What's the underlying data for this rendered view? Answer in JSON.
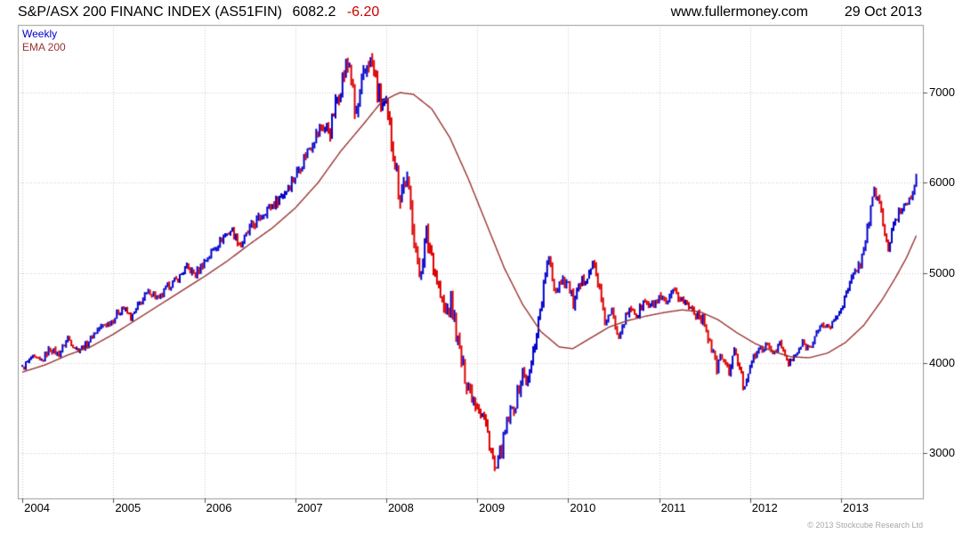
{
  "header": {
    "title": "S&P/ASX 200 FINANC INDEX (AS51FIN)",
    "last_value": "6082.2",
    "change": "-6.20",
    "website": "www.fullermoney.com",
    "date": "29 Oct 2013"
  },
  "legend": {
    "series1": "Weekly",
    "series2": "EMA 200"
  },
  "footer": {
    "copyright": "© 2013 Stockcube Research Ltd"
  },
  "axes": {
    "y_ticks": [
      7000,
      6000,
      5000,
      4000,
      3000
    ],
    "x_ticks": [
      2004,
      2005,
      2006,
      2007,
      2008,
      2009,
      2010,
      2011,
      2012,
      2013
    ]
  },
  "chart_data": {
    "type": "bar",
    "subtype": "weekly-high-low-bars-with-ema",
    "title": "S&P/ASX 200 FINANC INDEX (AS51FIN)",
    "last_close": 6082.2,
    "change": -6.2,
    "x_min": 2003.95,
    "x_max": 2013.9,
    "y_min": 2500,
    "y_max": 7750,
    "t_start": 2004.0,
    "t_end": 2013.83,
    "grid": true,
    "legend_position": "top-left",
    "colors": {
      "up": "#0000cc",
      "down": "#dd0000",
      "ema": "#993333",
      "grid": "#c8c8c8",
      "border": "#999999",
      "tick": "#555555",
      "change_negative": "#cc0000"
    },
    "price_anchors": [
      [
        2004.0,
        3940
      ],
      [
        2004.1,
        4060
      ],
      [
        2004.2,
        4010
      ],
      [
        2004.3,
        4160
      ],
      [
        2004.4,
        4100
      ],
      [
        2004.5,
        4280
      ],
      [
        2004.6,
        4150
      ],
      [
        2004.7,
        4200
      ],
      [
        2004.8,
        4350
      ],
      [
        2004.9,
        4420
      ],
      [
        2005.0,
        4480
      ],
      [
        2005.1,
        4620
      ],
      [
        2005.2,
        4500
      ],
      [
        2005.3,
        4680
      ],
      [
        2005.4,
        4800
      ],
      [
        2005.5,
        4700
      ],
      [
        2005.6,
        4850
      ],
      [
        2005.7,
        4920
      ],
      [
        2005.8,
        5060
      ],
      [
        2005.9,
        4980
      ],
      [
        2006.0,
        5120
      ],
      [
        2006.1,
        5260
      ],
      [
        2006.2,
        5390
      ],
      [
        2006.3,
        5480
      ],
      [
        2006.4,
        5300
      ],
      [
        2006.5,
        5480
      ],
      [
        2006.6,
        5600
      ],
      [
        2006.7,
        5720
      ],
      [
        2006.8,
        5800
      ],
      [
        2006.9,
        5920
      ],
      [
        2007.0,
        6080
      ],
      [
        2007.1,
        6280
      ],
      [
        2007.2,
        6480
      ],
      [
        2007.3,
        6650
      ],
      [
        2007.38,
        6560
      ],
      [
        2007.45,
        6900
      ],
      [
        2007.55,
        7250
      ],
      [
        2007.6,
        7330
      ],
      [
        2007.66,
        6700
      ],
      [
        2007.72,
        7000
      ],
      [
        2007.8,
        7380
      ],
      [
        2007.86,
        7250
      ],
      [
        2007.93,
        6900
      ],
      [
        2008.0,
        6800
      ],
      [
        2008.08,
        6350
      ],
      [
        2008.15,
        5850
      ],
      [
        2008.22,
        6050
      ],
      [
        2008.3,
        5500
      ],
      [
        2008.36,
        4950
      ],
      [
        2008.44,
        5400
      ],
      [
        2008.5,
        5200
      ],
      [
        2008.58,
        4800
      ],
      [
        2008.65,
        4550
      ],
      [
        2008.72,
        4650
      ],
      [
        2008.8,
        4150
      ],
      [
        2008.88,
        3800
      ],
      [
        2008.95,
        3650
      ],
      [
        2009.0,
        3550
      ],
      [
        2009.08,
        3380
      ],
      [
        2009.15,
        3050
      ],
      [
        2009.2,
        2780
      ],
      [
        2009.28,
        3100
      ],
      [
        2009.35,
        3420
      ],
      [
        2009.42,
        3550
      ],
      [
        2009.5,
        3900
      ],
      [
        2009.56,
        3780
      ],
      [
        2009.62,
        4150
      ],
      [
        2009.7,
        4650
      ],
      [
        2009.76,
        5050
      ],
      [
        2009.8,
        5120
      ],
      [
        2009.86,
        4800
      ],
      [
        2009.93,
        4950
      ],
      [
        2010.0,
        4880
      ],
      [
        2010.06,
        4650
      ],
      [
        2010.12,
        4820
      ],
      [
        2010.2,
        4980
      ],
      [
        2010.28,
        5100
      ],
      [
        2010.34,
        4850
      ],
      [
        2010.4,
        4450
      ],
      [
        2010.48,
        4550
      ],
      [
        2010.55,
        4320
      ],
      [
        2010.62,
        4480
      ],
      [
        2010.7,
        4620
      ],
      [
        2010.76,
        4520
      ],
      [
        2010.83,
        4680
      ],
      [
        2010.9,
        4620
      ],
      [
        2011.0,
        4700
      ],
      [
        2011.08,
        4640
      ],
      [
        2011.16,
        4780
      ],
      [
        2011.25,
        4720
      ],
      [
        2011.33,
        4620
      ],
      [
        2011.42,
        4550
      ],
      [
        2011.5,
        4450
      ],
      [
        2011.58,
        4150
      ],
      [
        2011.63,
        3950
      ],
      [
        2011.7,
        4080
      ],
      [
        2011.76,
        3880
      ],
      [
        2011.82,
        4120
      ],
      [
        2011.88,
        3980
      ],
      [
        2011.93,
        3720
      ],
      [
        2012.0,
        3980
      ],
      [
        2012.08,
        4120
      ],
      [
        2012.16,
        4200
      ],
      [
        2012.25,
        4120
      ],
      [
        2012.33,
        4220
      ],
      [
        2012.42,
        3980
      ],
      [
        2012.5,
        4080
      ],
      [
        2012.58,
        4220
      ],
      [
        2012.65,
        4160
      ],
      [
        2012.72,
        4320
      ],
      [
        2012.8,
        4420
      ],
      [
        2012.88,
        4400
      ],
      [
        2012.95,
        4520
      ],
      [
        2013.0,
        4620
      ],
      [
        2013.08,
        4820
      ],
      [
        2013.15,
        5020
      ],
      [
        2013.22,
        5120
      ],
      [
        2013.3,
        5550
      ],
      [
        2013.36,
        5880
      ],
      [
        2013.42,
        5820
      ],
      [
        2013.48,
        5420
      ],
      [
        2013.52,
        5280
      ],
      [
        2013.58,
        5520
      ],
      [
        2013.64,
        5680
      ],
      [
        2013.7,
        5760
      ],
      [
        2013.76,
        5840
      ],
      [
        2013.8,
        5980
      ],
      [
        2013.83,
        6082
      ]
    ],
    "ema_anchors": [
      [
        2004.0,
        3900
      ],
      [
        2004.25,
        3980
      ],
      [
        2004.5,
        4090
      ],
      [
        2004.75,
        4180
      ],
      [
        2005.0,
        4320
      ],
      [
        2005.25,
        4480
      ],
      [
        2005.5,
        4640
      ],
      [
        2005.75,
        4800
      ],
      [
        2006.0,
        4960
      ],
      [
        2006.25,
        5130
      ],
      [
        2006.5,
        5320
      ],
      [
        2006.75,
        5500
      ],
      [
        2007.0,
        5720
      ],
      [
        2007.25,
        6000
      ],
      [
        2007.5,
        6350
      ],
      [
        2007.75,
        6650
      ],
      [
        2007.95,
        6900
      ],
      [
        2008.15,
        7000
      ],
      [
        2008.3,
        6980
      ],
      [
        2008.5,
        6820
      ],
      [
        2008.7,
        6500
      ],
      [
        2008.9,
        6050
      ],
      [
        2009.1,
        5550
      ],
      [
        2009.3,
        5050
      ],
      [
        2009.5,
        4650
      ],
      [
        2009.7,
        4350
      ],
      [
        2009.9,
        4180
      ],
      [
        2010.05,
        4160
      ],
      [
        2010.25,
        4280
      ],
      [
        2010.45,
        4400
      ],
      [
        2010.65,
        4470
      ],
      [
        2010.85,
        4520
      ],
      [
        2011.05,
        4560
      ],
      [
        2011.25,
        4590
      ],
      [
        2011.45,
        4570
      ],
      [
        2011.65,
        4480
      ],
      [
        2011.85,
        4340
      ],
      [
        2012.05,
        4220
      ],
      [
        2012.25,
        4130
      ],
      [
        2012.45,
        4070
      ],
      [
        2012.65,
        4060
      ],
      [
        2012.85,
        4110
      ],
      [
        2013.05,
        4230
      ],
      [
        2013.25,
        4420
      ],
      [
        2013.45,
        4700
      ],
      [
        2013.6,
        4950
      ],
      [
        2013.72,
        5170
      ],
      [
        2013.83,
        5420
      ]
    ],
    "volatility_anchors": [
      [
        2004.0,
        0.011
      ],
      [
        2006.0,
        0.011
      ],
      [
        2007.0,
        0.013
      ],
      [
        2007.5,
        0.018
      ],
      [
        2008.0,
        0.024
      ],
      [
        2008.6,
        0.03
      ],
      [
        2009.0,
        0.034
      ],
      [
        2009.3,
        0.032
      ],
      [
        2009.8,
        0.02
      ],
      [
        2010.2,
        0.016
      ],
      [
        2010.6,
        0.015
      ],
      [
        2011.4,
        0.015
      ],
      [
        2011.7,
        0.022
      ],
      [
        2012.0,
        0.014
      ],
      [
        2012.5,
        0.012
      ],
      [
        2013.0,
        0.011
      ],
      [
        2013.4,
        0.014
      ],
      [
        2013.9,
        0.011
      ]
    ]
  }
}
